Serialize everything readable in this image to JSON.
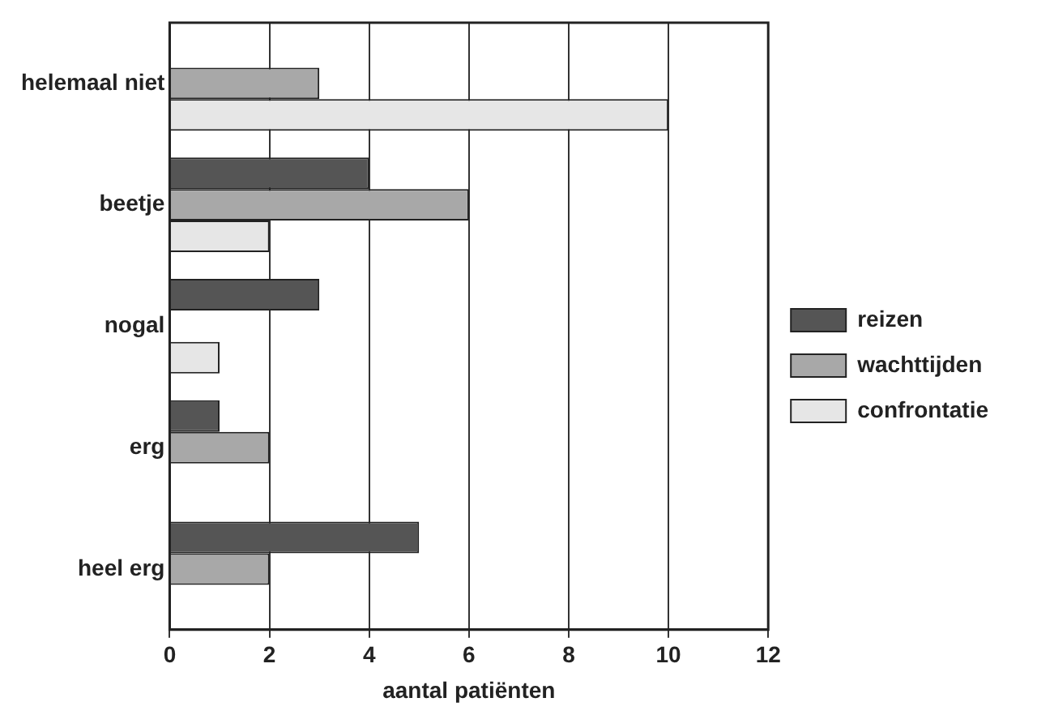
{
  "chart_data": {
    "type": "bar",
    "orientation": "horizontal",
    "xlabel": "aantal patiënten",
    "categories": [
      "helemaal niet",
      "beetje",
      "nogal",
      "erg",
      "heel erg"
    ],
    "series": [
      {
        "name": "reizen",
        "color": "#555555",
        "values": [
          0,
          4,
          3,
          1,
          5
        ]
      },
      {
        "name": "wachttijden",
        "color": "#a8a8a8",
        "values": [
          3,
          6,
          0,
          2,
          2
        ]
      },
      {
        "name": "confrontatie",
        "color": "#e6e6e6",
        "values": [
          10,
          2,
          1,
          0,
          0
        ]
      }
    ],
    "xlim": [
      0,
      12
    ],
    "xticks": [
      0,
      2,
      4,
      6,
      8,
      10,
      12
    ],
    "grid": "x",
    "legend": "right"
  }
}
